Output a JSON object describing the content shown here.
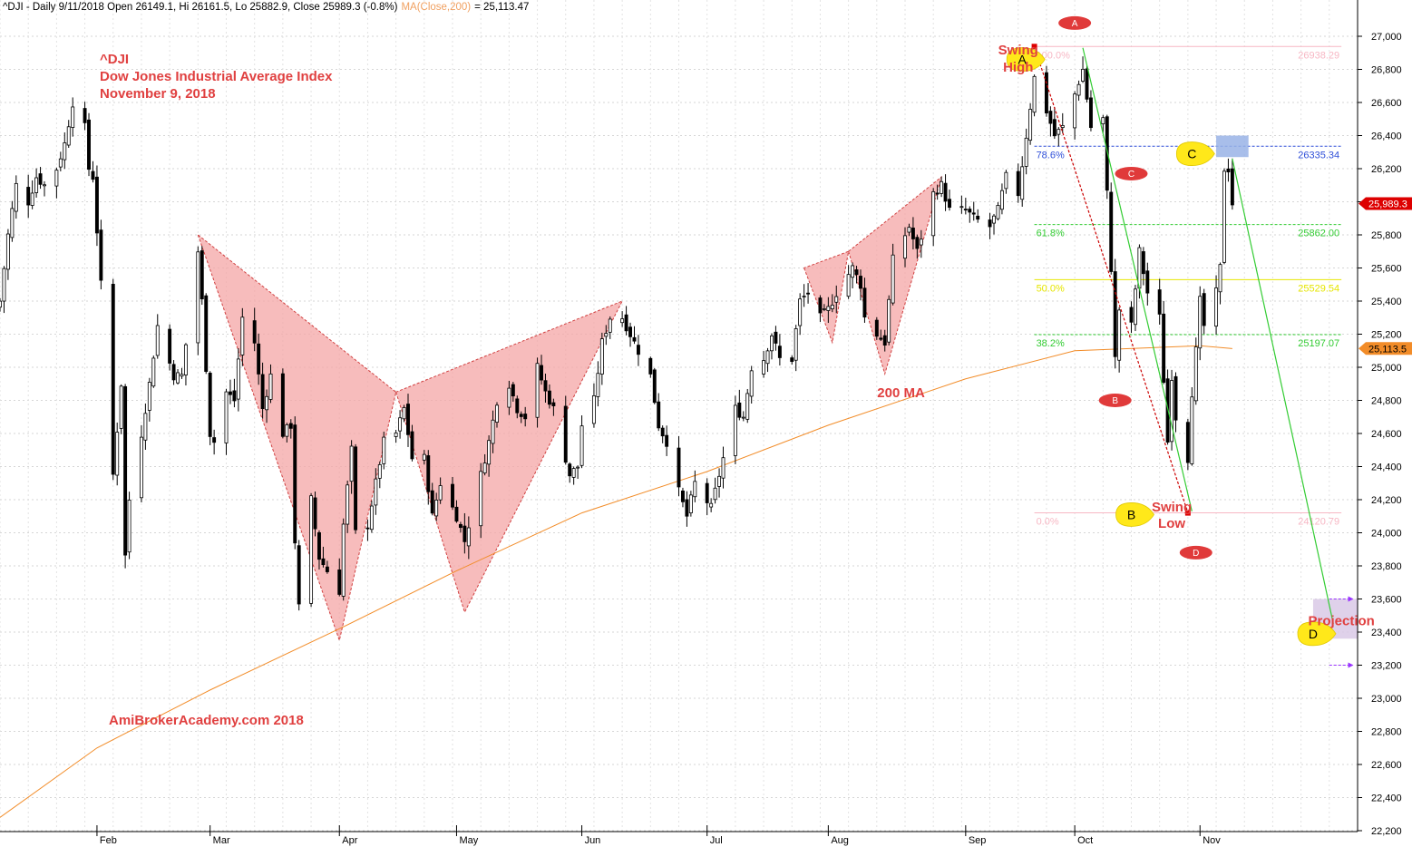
{
  "chart_data": {
    "type": "candlestick",
    "header": {
      "prefix": "^DJI - Daily 9/11/2018 Open 26149.1, Hi 26161.5, Lo 25882.9, Close 25989.3 (-0.8%)",
      "ma_label": "MA(Close,200)",
      "ma_value": "= 25,113.47"
    },
    "title_lines": [
      "^DJI",
      "Dow Jones Industrial Average Index",
      "November 9, 2018"
    ],
    "watermark": "AmiBrokerAcademy.com  2018",
    "y_axis": {
      "min": 22200,
      "max": 27000,
      "step": 200,
      "tick_labels": [
        "22,200",
        "22,400",
        "22,600",
        "22,800",
        "23,000",
        "23,200",
        "23,400",
        "23,600",
        "23,800",
        "24,000",
        "24,200",
        "24,400",
        "24,600",
        "24,800",
        "25,000",
        "25,200",
        "25,400",
        "25,600",
        "25,800",
        "26,000",
        "26,200",
        "26,400",
        "26,600",
        "26,800",
        "27,000"
      ]
    },
    "x_axis": {
      "start": "2018-01-08",
      "end": "2018-12-10",
      "months": [
        {
          "label": "Feb",
          "date": "2018-02-01"
        },
        {
          "label": "Mar",
          "date": "2018-03-01"
        },
        {
          "label": "Apr",
          "date": "2018-04-02"
        },
        {
          "label": "May",
          "date": "2018-05-01"
        },
        {
          "label": "Jun",
          "date": "2018-06-01"
        },
        {
          "label": "Jul",
          "date": "2018-07-02"
        },
        {
          "label": "Aug",
          "date": "2018-08-01"
        },
        {
          "label": "Sep",
          "date": "2018-09-04"
        },
        {
          "label": "Oct",
          "date": "2018-10-01"
        },
        {
          "label": "Nov",
          "date": "2018-11-01"
        }
      ]
    },
    "grid": true,
    "close_path": [
      [
        "2018-01-08",
        25400
      ],
      [
        "2018-01-10",
        25800
      ],
      [
        "2018-01-12",
        26100
      ],
      [
        "2018-01-15",
        26000
      ],
      [
        "2018-01-17",
        26150
      ],
      [
        "2018-01-19",
        26100
      ],
      [
        "2018-01-22",
        26200
      ],
      [
        "2018-01-24",
        26350
      ],
      [
        "2018-01-26",
        26600
      ],
      [
        "2018-01-29",
        26450
      ],
      [
        "2018-01-30",
        26200
      ],
      [
        "2018-01-31",
        26150
      ],
      [
        "2018-02-02",
        25500
      ],
      [
        "2018-02-05",
        24350
      ],
      [
        "2018-02-07",
        24900
      ],
      [
        "2018-02-08",
        23860
      ],
      [
        "2018-02-09",
        24200
      ],
      [
        "2018-02-12",
        24600
      ],
      [
        "2018-02-14",
        24900
      ],
      [
        "2018-02-16",
        25250
      ],
      [
        "2018-02-20",
        24950
      ],
      [
        "2018-02-22",
        24950
      ],
      [
        "2018-02-26",
        25700
      ],
      [
        "2018-02-27",
        25400
      ],
      [
        "2018-03-01",
        24600
      ],
      [
        "2018-03-02",
        24550
      ],
      [
        "2018-03-05",
        24850
      ],
      [
        "2018-03-07",
        24800
      ],
      [
        "2018-03-09",
        25300
      ],
      [
        "2018-03-12",
        25150
      ],
      [
        "2018-03-14",
        24750
      ],
      [
        "2018-03-16",
        24950
      ],
      [
        "2018-03-19",
        24600
      ],
      [
        "2018-03-21",
        24650
      ],
      [
        "2018-03-22",
        23950
      ],
      [
        "2018-03-23",
        23550
      ],
      [
        "2018-03-26",
        24200
      ],
      [
        "2018-03-28",
        23850
      ],
      [
        "2018-04-02",
        23650
      ],
      [
        "2018-04-03",
        24050
      ],
      [
        "2018-04-05",
        24500
      ],
      [
        "2018-04-06",
        24000
      ],
      [
        "2018-04-09",
        24050
      ],
      [
        "2018-04-11",
        24300
      ],
      [
        "2018-04-13",
        24550
      ],
      [
        "2018-04-16",
        24600
      ],
      [
        "2018-04-18",
        24750
      ],
      [
        "2018-04-20",
        24450
      ],
      [
        "2018-04-23",
        24450
      ],
      [
        "2018-04-25",
        24100
      ],
      [
        "2018-04-27",
        24300
      ],
      [
        "2018-05-01",
        24100
      ],
      [
        "2018-05-03",
        23950
      ],
      [
        "2018-05-07",
        24350
      ],
      [
        "2018-05-09",
        24550
      ],
      [
        "2018-05-11",
        24800
      ],
      [
        "2018-05-14",
        24900
      ],
      [
        "2018-05-16",
        24750
      ],
      [
        "2018-05-18",
        24700
      ],
      [
        "2018-05-21",
        25000
      ],
      [
        "2018-05-23",
        24850
      ],
      [
        "2018-05-25",
        24750
      ],
      [
        "2018-05-29",
        24350
      ],
      [
        "2018-05-31",
        24400
      ],
      [
        "2018-06-01",
        24650
      ],
      [
        "2018-06-04",
        24800
      ],
      [
        "2018-06-06",
        25150
      ],
      [
        "2018-06-08",
        25300
      ],
      [
        "2018-06-11",
        25300
      ],
      [
        "2018-06-13",
        25200
      ],
      [
        "2018-06-14",
        25150
      ],
      [
        "2018-06-18",
        24950
      ],
      [
        "2018-06-20",
        24650
      ],
      [
        "2018-06-22",
        24550
      ],
      [
        "2018-06-25",
        24250
      ],
      [
        "2018-06-27",
        24100
      ],
      [
        "2018-06-29",
        24300
      ],
      [
        "2018-07-03",
        24150
      ],
      [
        "2018-07-06",
        24450
      ],
      [
        "2018-07-09",
        24750
      ],
      [
        "2018-07-11",
        24700
      ],
      [
        "2018-07-13",
        25000
      ],
      [
        "2018-07-16",
        25050
      ],
      [
        "2018-07-18",
        25200
      ],
      [
        "2018-07-20",
        25050
      ],
      [
        "2018-07-23",
        25050
      ],
      [
        "2018-07-25",
        25400
      ],
      [
        "2018-07-27",
        25450
      ],
      [
        "2018-07-30",
        25300
      ],
      [
        "2018-08-01",
        25350
      ],
      [
        "2018-08-03",
        25450
      ],
      [
        "2018-08-07",
        25600
      ],
      [
        "2018-08-09",
        25500
      ],
      [
        "2018-08-10",
        25300
      ],
      [
        "2018-08-13",
        25200
      ],
      [
        "2018-08-15",
        25150
      ],
      [
        "2018-08-17",
        25650
      ],
      [
        "2018-08-21",
        25850
      ],
      [
        "2018-08-23",
        25700
      ],
      [
        "2018-08-27",
        26050
      ],
      [
        "2018-08-29",
        26100
      ],
      [
        "2018-08-31",
        25950
      ],
      [
        "2018-09-04",
        25950
      ],
      [
        "2018-09-06",
        25900
      ],
      [
        "2018-09-10",
        25850
      ],
      [
        "2018-09-12",
        25950
      ],
      [
        "2018-09-14",
        26150
      ],
      [
        "2018-09-17",
        26050
      ],
      [
        "2018-09-19",
        26400
      ],
      [
        "2018-09-21",
        26750
      ],
      [
        "2018-09-24",
        26550
      ],
      [
        "2018-09-26",
        26400
      ],
      [
        "2018-09-28",
        26450
      ],
      [
        "2018-10-01",
        26650
      ],
      [
        "2018-10-03",
        26800
      ],
      [
        "2018-10-05",
        26450
      ],
      [
        "2018-10-08",
        26500
      ],
      [
        "2018-10-10",
        25600
      ],
      [
        "2018-10-11",
        25050
      ],
      [
        "2018-10-12",
        25350
      ],
      [
        "2018-10-15",
        25250
      ],
      [
        "2018-10-17",
        25700
      ],
      [
        "2018-10-19",
        25450
      ],
      [
        "2018-10-22",
        25300
      ],
      [
        "2018-10-24",
        24550
      ],
      [
        "2018-10-25",
        24950
      ],
      [
        "2018-10-26",
        24700
      ],
      [
        "2018-10-29",
        24450
      ],
      [
        "2018-10-30",
        24850
      ],
      [
        "2018-10-31",
        25100
      ],
      [
        "2018-11-01",
        25400
      ],
      [
        "2018-11-02",
        25250
      ],
      [
        "2018-11-05",
        25450
      ],
      [
        "2018-11-06",
        25600
      ],
      [
        "2018-11-07",
        26200
      ],
      [
        "2018-11-08",
        26200
      ],
      [
        "2018-11-09",
        25990
      ]
    ],
    "ma200": {
      "name": "200 MA",
      "points": [
        [
          "2018-01-08",
          22280
        ],
        [
          "2018-02-01",
          22700
        ],
        [
          "2018-03-01",
          23050
        ],
        [
          "2018-04-02",
          23420
        ],
        [
          "2018-05-01",
          23770
        ],
        [
          "2018-06-01",
          24120
        ],
        [
          "2018-07-02",
          24370
        ],
        [
          "2018-08-01",
          24650
        ],
        [
          "2018-09-04",
          24930
        ],
        [
          "2018-10-01",
          25100
        ],
        [
          "2018-11-01",
          25130
        ],
        [
          "2018-11-09",
          25113
        ]
      ]
    },
    "harmonic_patterns": [
      {
        "X": [
          "2018-02-26",
          25800
        ],
        "A": [
          "2018-04-02",
          23350
        ],
        "B": [
          "2018-04-16",
          24850
        ],
        "C": [
          "2018-05-03",
          23520
        ],
        "D": [
          "2018-06-11",
          25400
        ]
      },
      {
        "X": [
          "2018-07-26",
          25600
        ],
        "A": [
          "2018-08-02",
          25150
        ],
        "B": [
          "2018-08-06",
          25700
        ],
        "C": [
          "2018-08-15",
          24960
        ],
        "D": [
          "2018-08-29",
          26150
        ]
      }
    ],
    "fibonacci": {
      "from": "2018-09-21",
      "to": "2018-12-06",
      "levels": [
        {
          "pct": "100.0%",
          "value": "26938.29",
          "price": 26938.29,
          "color": "#f7b7c4"
        },
        {
          "pct": "78.6%",
          "value": "26335.34",
          "price": 26335.34,
          "color": "#2f4fd8",
          "dashed": true
        },
        {
          "pct": "61.8%",
          "value": "25862.00",
          "price": 25862.0,
          "color": "#33cc33",
          "dashed": true
        },
        {
          "pct": "50.0%",
          "value": "25529.54",
          "price": 25529.54,
          "color": "#e6e600"
        },
        {
          "pct": "38.2%",
          "value": "25197.07",
          "price": 25197.07,
          "color": "#33cc33",
          "dashed": true
        },
        {
          "pct": "0.0%",
          "value": "24120.79",
          "price": 24120.79,
          "color": "#f7b7c4"
        }
      ]
    },
    "abcd_lines": [
      {
        "from": [
          "2018-09-21",
          26938
        ],
        "to": [
          "2018-10-29",
          24120
        ],
        "color": "#cc0000",
        "dashed": true
      },
      {
        "from": [
          "2018-10-03",
          26930
        ],
        "to": [
          "2018-10-30",
          24130
        ],
        "color": "#33cc33"
      },
      {
        "from": [
          "2018-11-09",
          26260
        ],
        "to": [
          "2018-12-04",
          23450
        ],
        "color": "#33cc33"
      }
    ],
    "annotations": {
      "swing_high": {
        "lines": [
          "Swing",
          "High"
        ],
        "date": "2018-09-17",
        "price": 26890
      },
      "swing_low": {
        "lines": [
          "Swing",
          "Low"
        ],
        "date": "2018-10-25",
        "price": 24130
      },
      "ma_label": {
        "text": "200 MA",
        "date": "2018-08-19",
        "price": 24820
      },
      "projection": {
        "text": "Projection",
        "date": "2018-12-06",
        "price": 23440
      },
      "yellow_markers": [
        {
          "label": "A",
          "date": "2018-09-18",
          "price": 26860
        },
        {
          "label": "C",
          "date": "2018-10-30",
          "price": 26290
        },
        {
          "label": "B",
          "date": "2018-10-15",
          "price": 24110
        },
        {
          "label": "D",
          "date": "2018-11-29",
          "price": 23390
        }
      ],
      "red_markers": [
        {
          "label": "A",
          "date": "2018-10-01",
          "price": 27080
        },
        {
          "label": "C",
          "date": "2018-10-15",
          "price": 26170
        },
        {
          "label": "B",
          "date": "2018-10-11",
          "price": 24800
        },
        {
          "label": "D",
          "date": "2018-10-31",
          "price": 23880
        }
      ],
      "zones": [
        {
          "name": "c-zone",
          "date_from": "2018-11-05",
          "date_to": "2018-11-13",
          "price_from": 26270,
          "price_to": 26400,
          "color": "#99b3e6"
        },
        {
          "name": "d-zone",
          "date_from": "2018-11-29",
          "date_to": "2018-12-10",
          "price_from": 23360,
          "price_to": 23600,
          "color": "#d9c9e6"
        }
      ],
      "arrows": [
        {
          "date_from": "2018-12-03",
          "date_to": "2018-12-09",
          "price": 23600
        },
        {
          "date_from": "2018-12-03",
          "date_to": "2018-12-09",
          "price": 23200
        }
      ]
    },
    "price_tags": [
      {
        "text": "25,989.3",
        "price": 25989.3,
        "bg": "#dd0000",
        "fg": "#ffffff"
      },
      {
        "text": "25,113.5",
        "price": 25113.5,
        "bg": "#f28c28",
        "fg": "#000000"
      }
    ]
  }
}
